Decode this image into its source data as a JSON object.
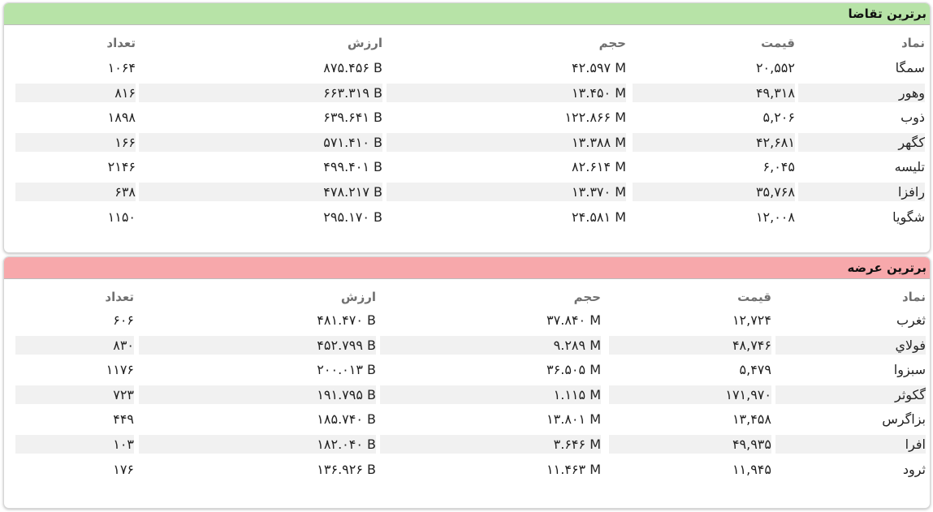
{
  "tables": [
    {
      "title": "برترین تقاضا",
      "headers": {
        "name": "نماد",
        "price": "قیمت",
        "volume": "حجم",
        "value": "ارزش",
        "count": "تعداد"
      },
      "rows": [
        {
          "name": "سمگا",
          "price": "۲۰,۵۵۲",
          "volume": "۴۲.۵۹۷ M",
          "value": "۸۷۵.۴۵۶ B",
          "count": "۱۰۶۴"
        },
        {
          "name": "وهور",
          "price": "۴۹,۳۱۸",
          "volume": "۱۳.۴۵۰ M",
          "value": "۶۶۳.۳۱۹ B",
          "count": "۸۱۶"
        },
        {
          "name": "ذوب",
          "price": "۵,۲۰۶",
          "volume": "۱۲۲.۸۶۶ M",
          "value": "۶۳۹.۶۴۱ B",
          "count": "۱۸۹۸"
        },
        {
          "name": "کگهر",
          "price": "۴۲,۶۸۱",
          "volume": "۱۳.۳۸۸ M",
          "value": "۵۷۱.۴۱۰ B",
          "count": "۱۶۶"
        },
        {
          "name": "تلیسه",
          "price": "۶,۰۴۵",
          "volume": "۸۲.۶۱۴ M",
          "value": "۴۹۹.۴۰۱ B",
          "count": "۲۱۴۶"
        },
        {
          "name": "رافزا",
          "price": "۳۵,۷۶۸",
          "volume": "۱۳.۳۷۰ M",
          "value": "۴۷۸.۲۱۷ B",
          "count": "۶۳۸"
        },
        {
          "name": "شگویا",
          "price": "۱۲,۰۰۸",
          "volume": "۲۴.۵۸۱ M",
          "value": "۲۹۵.۱۷۰ B",
          "count": "۱۱۵۰"
        }
      ]
    },
    {
      "title": "برترین عرضه",
      "headers": {
        "name": "نماد",
        "price": "قیمت",
        "volume": "حجم",
        "value": "ارزش",
        "count": "تعداد"
      },
      "rows": [
        {
          "name": "ثغرب",
          "price": "۱۲,۷۲۴",
          "volume": "۳۷.۸۴۰ M",
          "value": "۴۸۱.۴۷۰ B",
          "count": "۶۰۶"
        },
        {
          "name": "فولاي",
          "price": "۴۸,۷۴۶",
          "volume": "۹.۲۸۹ M",
          "value": "۴۵۲.۷۹۹ B",
          "count": "۸۳۰"
        },
        {
          "name": "سبزوا",
          "price": "۵,۴۷۹",
          "volume": "۳۶.۵۰۵ M",
          "value": "۲۰۰.۰۱۳ B",
          "count": "۱۱۷۶"
        },
        {
          "name": "گکوثر",
          "price": "۱۷۱,۹۷۰",
          "volume": "۱.۱۱۵ M",
          "value": "۱۹۱.۷۹۵ B",
          "count": "۷۲۳"
        },
        {
          "name": "بزاگرس",
          "price": "۱۳,۴۵۸",
          "volume": "۱۳.۸۰۱ M",
          "value": "۱۸۵.۷۴۰ B",
          "count": "۴۴۹"
        },
        {
          "name": "افرا",
          "price": "۴۹,۹۳۵",
          "volume": "۳.۶۴۶ M",
          "value": "۱۸۲.۰۴۰ B",
          "count": "۱۰۳"
        },
        {
          "name": "ثرود",
          "price": "۱۱,۹۴۵",
          "volume": "۱۱.۴۶۳ M",
          "value": "۱۳۶.۹۲۶ B",
          "count": "۱۷۶"
        }
      ]
    }
  ],
  "colors": {
    "demand_header": "#b7e3a7",
    "supply_header": "#f7a8ab",
    "stripe": "#f1f1f1"
  }
}
